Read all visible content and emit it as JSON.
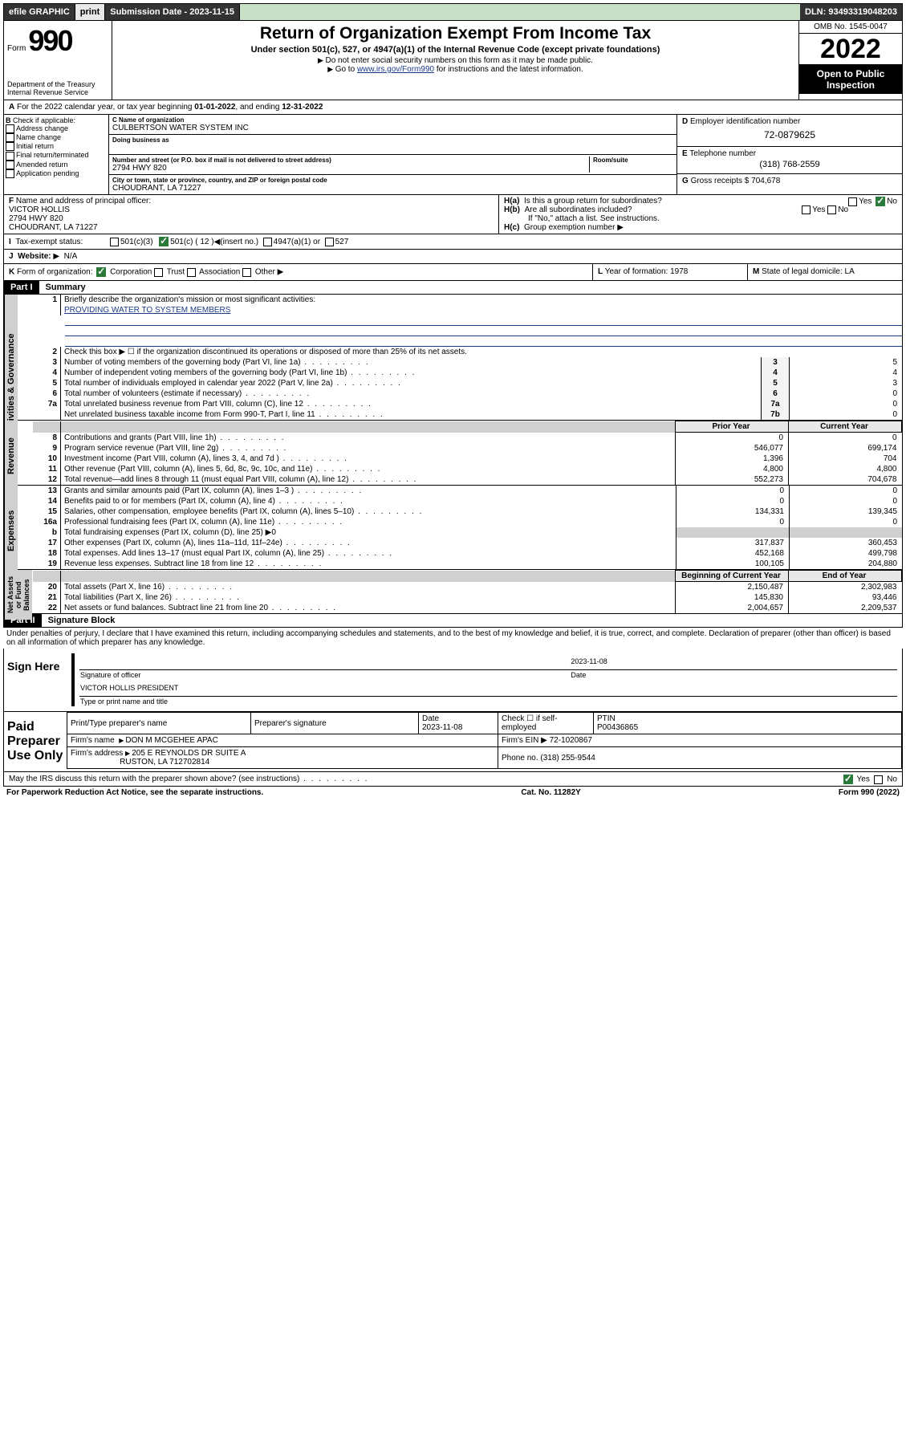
{
  "topbar": {
    "efile": "efile GRAPHIC",
    "print": "print",
    "sub_label": "Submission Date - ",
    "sub_date": "2023-11-15",
    "dln_label": "DLN: ",
    "dln": "93493319048203"
  },
  "header": {
    "form_prefix": "Form",
    "form_num": "990",
    "dept": "Department of the Treasury\nInternal Revenue Service",
    "title": "Return of Organization Exempt From Income Tax",
    "sub": "Under section 501(c), 527, or 4947(a)(1) of the Internal Revenue Code (except private foundations)",
    "note1": "Do not enter social security numbers on this form as it may be made public.",
    "note2_pre": "Go to ",
    "note2_link": "www.irs.gov/Form990",
    "note2_post": " for instructions and the latest information.",
    "omb": "OMB No. 1545-0047",
    "year": "2022",
    "inspect": "Open to Public Inspection"
  },
  "a": {
    "text_pre": "For the 2022 calendar year, or tax year beginning ",
    "begin": "01-01-2022",
    "mid": ", and ending ",
    "end": "12-31-2022"
  },
  "b": {
    "label": "Check if applicable:",
    "opts": [
      "Address change",
      "Name change",
      "Initial return",
      "Final return/terminated",
      "Amended return",
      "Application pending"
    ]
  },
  "c": {
    "name_label": "Name of organization",
    "name": "CULBERTSON WATER SYSTEM INC",
    "dba_label": "Doing business as",
    "addr_label": "Number and street (or P.O. box if mail is not delivered to street address)",
    "room_label": "Room/suite",
    "addr": "2794 HWY 820",
    "city_label": "City or town, state or province, country, and ZIP or foreign postal code",
    "city": "CHOUDRANT, LA  71227"
  },
  "d": {
    "label": "Employer identification number",
    "val": "72-0879625"
  },
  "e": {
    "label": "Telephone number",
    "val": "(318) 768-2559"
  },
  "g": {
    "label": "Gross receipts $",
    "val": "704,678"
  },
  "f": {
    "label": "Name and address of principal officer:",
    "name": "VICTOR HOLLIS",
    "addr1": "2794 HWY 820",
    "addr2": "CHOUDRANT, LA  71227"
  },
  "h": {
    "a": "Is this a group return for subordinates?",
    "b": "Are all subordinates included?",
    "note": "If \"No,\" attach a list. See instructions.",
    "c": "Group exemption number"
  },
  "i": {
    "label": "Tax-exempt status:",
    "c3": "501(c)(3)",
    "c": "501(c) ( 12 )",
    "ins": "(insert no.)",
    "a1": "4947(a)(1) or",
    "s527": "527"
  },
  "j": {
    "label": "Website:",
    "val": "N/A"
  },
  "k": {
    "label": "Form of organization:",
    "opts": [
      "Corporation",
      "Trust",
      "Association",
      "Other"
    ]
  },
  "l": {
    "label": "Year of formation:",
    "val": "1978"
  },
  "m": {
    "label": "State of legal domicile:",
    "val": "LA"
  },
  "part1": {
    "hdr": "Part I",
    "title": "Summary",
    "l1": "Briefly describe the organization's mission or most significant activities:",
    "mission": "PROVIDING WATER TO SYSTEM MEMBERS",
    "l2": "Check this box ▶ ☐  if the organization discontinued its operations or disposed of more than 25% of its net assets.",
    "rows_gov": [
      {
        "n": "3",
        "d": "Number of voting members of the governing body (Part VI, line 1a)",
        "box": "3",
        "v": "5"
      },
      {
        "n": "4",
        "d": "Number of independent voting members of the governing body (Part VI, line 1b)",
        "box": "4",
        "v": "4"
      },
      {
        "n": "5",
        "d": "Total number of individuals employed in calendar year 2022 (Part V, line 2a)",
        "box": "5",
        "v": "3"
      },
      {
        "n": "6",
        "d": "Total number of volunteers (estimate if necessary)",
        "box": "6",
        "v": "0"
      },
      {
        "n": "7a",
        "d": "Total unrelated business revenue from Part VIII, column (C), line 12",
        "box": "7a",
        "v": "0"
      },
      {
        "n": "",
        "d": "Net unrelated business taxable income from Form 990-T, Part I, line 11",
        "box": "7b",
        "v": "0"
      }
    ],
    "col_prior": "Prior Year",
    "col_curr": "Current Year",
    "rows_rev": [
      {
        "n": "8",
        "d": "Contributions and grants (Part VIII, line 1h)",
        "p": "0",
        "c": "0"
      },
      {
        "n": "9",
        "d": "Program service revenue (Part VIII, line 2g)",
        "p": "546,077",
        "c": "699,174"
      },
      {
        "n": "10",
        "d": "Investment income (Part VIII, column (A), lines 3, 4, and 7d )",
        "p": "1,396",
        "c": "704"
      },
      {
        "n": "11",
        "d": "Other revenue (Part VIII, column (A), lines 5, 6d, 8c, 9c, 10c, and 11e)",
        "p": "4,800",
        "c": "4,800"
      },
      {
        "n": "12",
        "d": "Total revenue—add lines 8 through 11 (must equal Part VIII, column (A), line 12)",
        "p": "552,273",
        "c": "704,678"
      }
    ],
    "rows_exp": [
      {
        "n": "13",
        "d": "Grants and similar amounts paid (Part IX, column (A), lines 1–3 )",
        "p": "0",
        "c": "0"
      },
      {
        "n": "14",
        "d": "Benefits paid to or for members (Part IX, column (A), line 4)",
        "p": "0",
        "c": "0"
      },
      {
        "n": "15",
        "d": "Salaries, other compensation, employee benefits (Part IX, column (A), lines 5–10)",
        "p": "134,331",
        "c": "139,345"
      },
      {
        "n": "16a",
        "d": "Professional fundraising fees (Part IX, column (A), line 11e)",
        "p": "0",
        "c": "0"
      },
      {
        "n": "b",
        "d": "Total fundraising expenses (Part IX, column (D), line 25) ▶0",
        "p": "",
        "c": "",
        "shade": true
      },
      {
        "n": "17",
        "d": "Other expenses (Part IX, column (A), lines 11a–11d, 11f–24e)",
        "p": "317,837",
        "c": "360,453"
      },
      {
        "n": "18",
        "d": "Total expenses. Add lines 13–17 (must equal Part IX, column (A), line 25)",
        "p": "452,168",
        "c": "499,798"
      },
      {
        "n": "19",
        "d": "Revenue less expenses. Subtract line 18 from line 12",
        "p": "100,105",
        "c": "204,880"
      }
    ],
    "col_boy": "Beginning of Current Year",
    "col_eoy": "End of Year",
    "rows_net": [
      {
        "n": "20",
        "d": "Total assets (Part X, line 16)",
        "p": "2,150,487",
        "c": "2,302,983"
      },
      {
        "n": "21",
        "d": "Total liabilities (Part X, line 26)",
        "p": "145,830",
        "c": "93,446"
      },
      {
        "n": "22",
        "d": "Net assets or fund balances. Subtract line 21 from line 20",
        "p": "2,004,657",
        "c": "2,209,537"
      }
    ],
    "tabs": {
      "gov": "Activities & Governance",
      "rev": "Revenue",
      "exp": "Expenses",
      "net": "Net Assets or Fund Balances"
    }
  },
  "part2": {
    "hdr": "Part II",
    "title": "Signature Block",
    "decl": "Under penalties of perjury, I declare that I have examined this return, including accompanying schedules and statements, and to the best of my knowledge and belief, it is true, correct, and complete. Declaration of preparer (other than officer) is based on all information of which preparer has any knowledge.",
    "sign_here": "Sign Here",
    "sig_officer": "Signature of officer",
    "sig_date": "2023-11-08",
    "date_lbl": "Date",
    "officer_name": "VICTOR HOLLIS  PRESIDENT",
    "name_lbl": "Type or print name and title",
    "paid": "Paid Preparer Use Only",
    "prep_name_lbl": "Print/Type preparer's name",
    "prep_sig_lbl": "Preparer's signature",
    "prep_date_lbl": "Date",
    "prep_date": "2023-11-08",
    "self_emp": "Check ☐ if self-employed",
    "ptin_lbl": "PTIN",
    "ptin": "P00436865",
    "firm_name_lbl": "Firm's name",
    "firm_name": "DON M MCGEHEE APAC",
    "firm_ein_lbl": "Firm's EIN",
    "firm_ein": "72-1020867",
    "firm_addr_lbl": "Firm's address",
    "firm_addr1": "205 E REYNOLDS DR SUITE A",
    "firm_addr2": "RUSTON, LA  712702814",
    "phone_lbl": "Phone no.",
    "phone": "(318) 255-9544",
    "discuss": "May the IRS discuss this return with the preparer shown above? (see instructions)",
    "yes": "Yes",
    "no": "No"
  },
  "footer": {
    "left": "For Paperwork Reduction Act Notice, see the separate instructions.",
    "mid": "Cat. No. 11282Y",
    "right": "Form 990 (2022)"
  }
}
